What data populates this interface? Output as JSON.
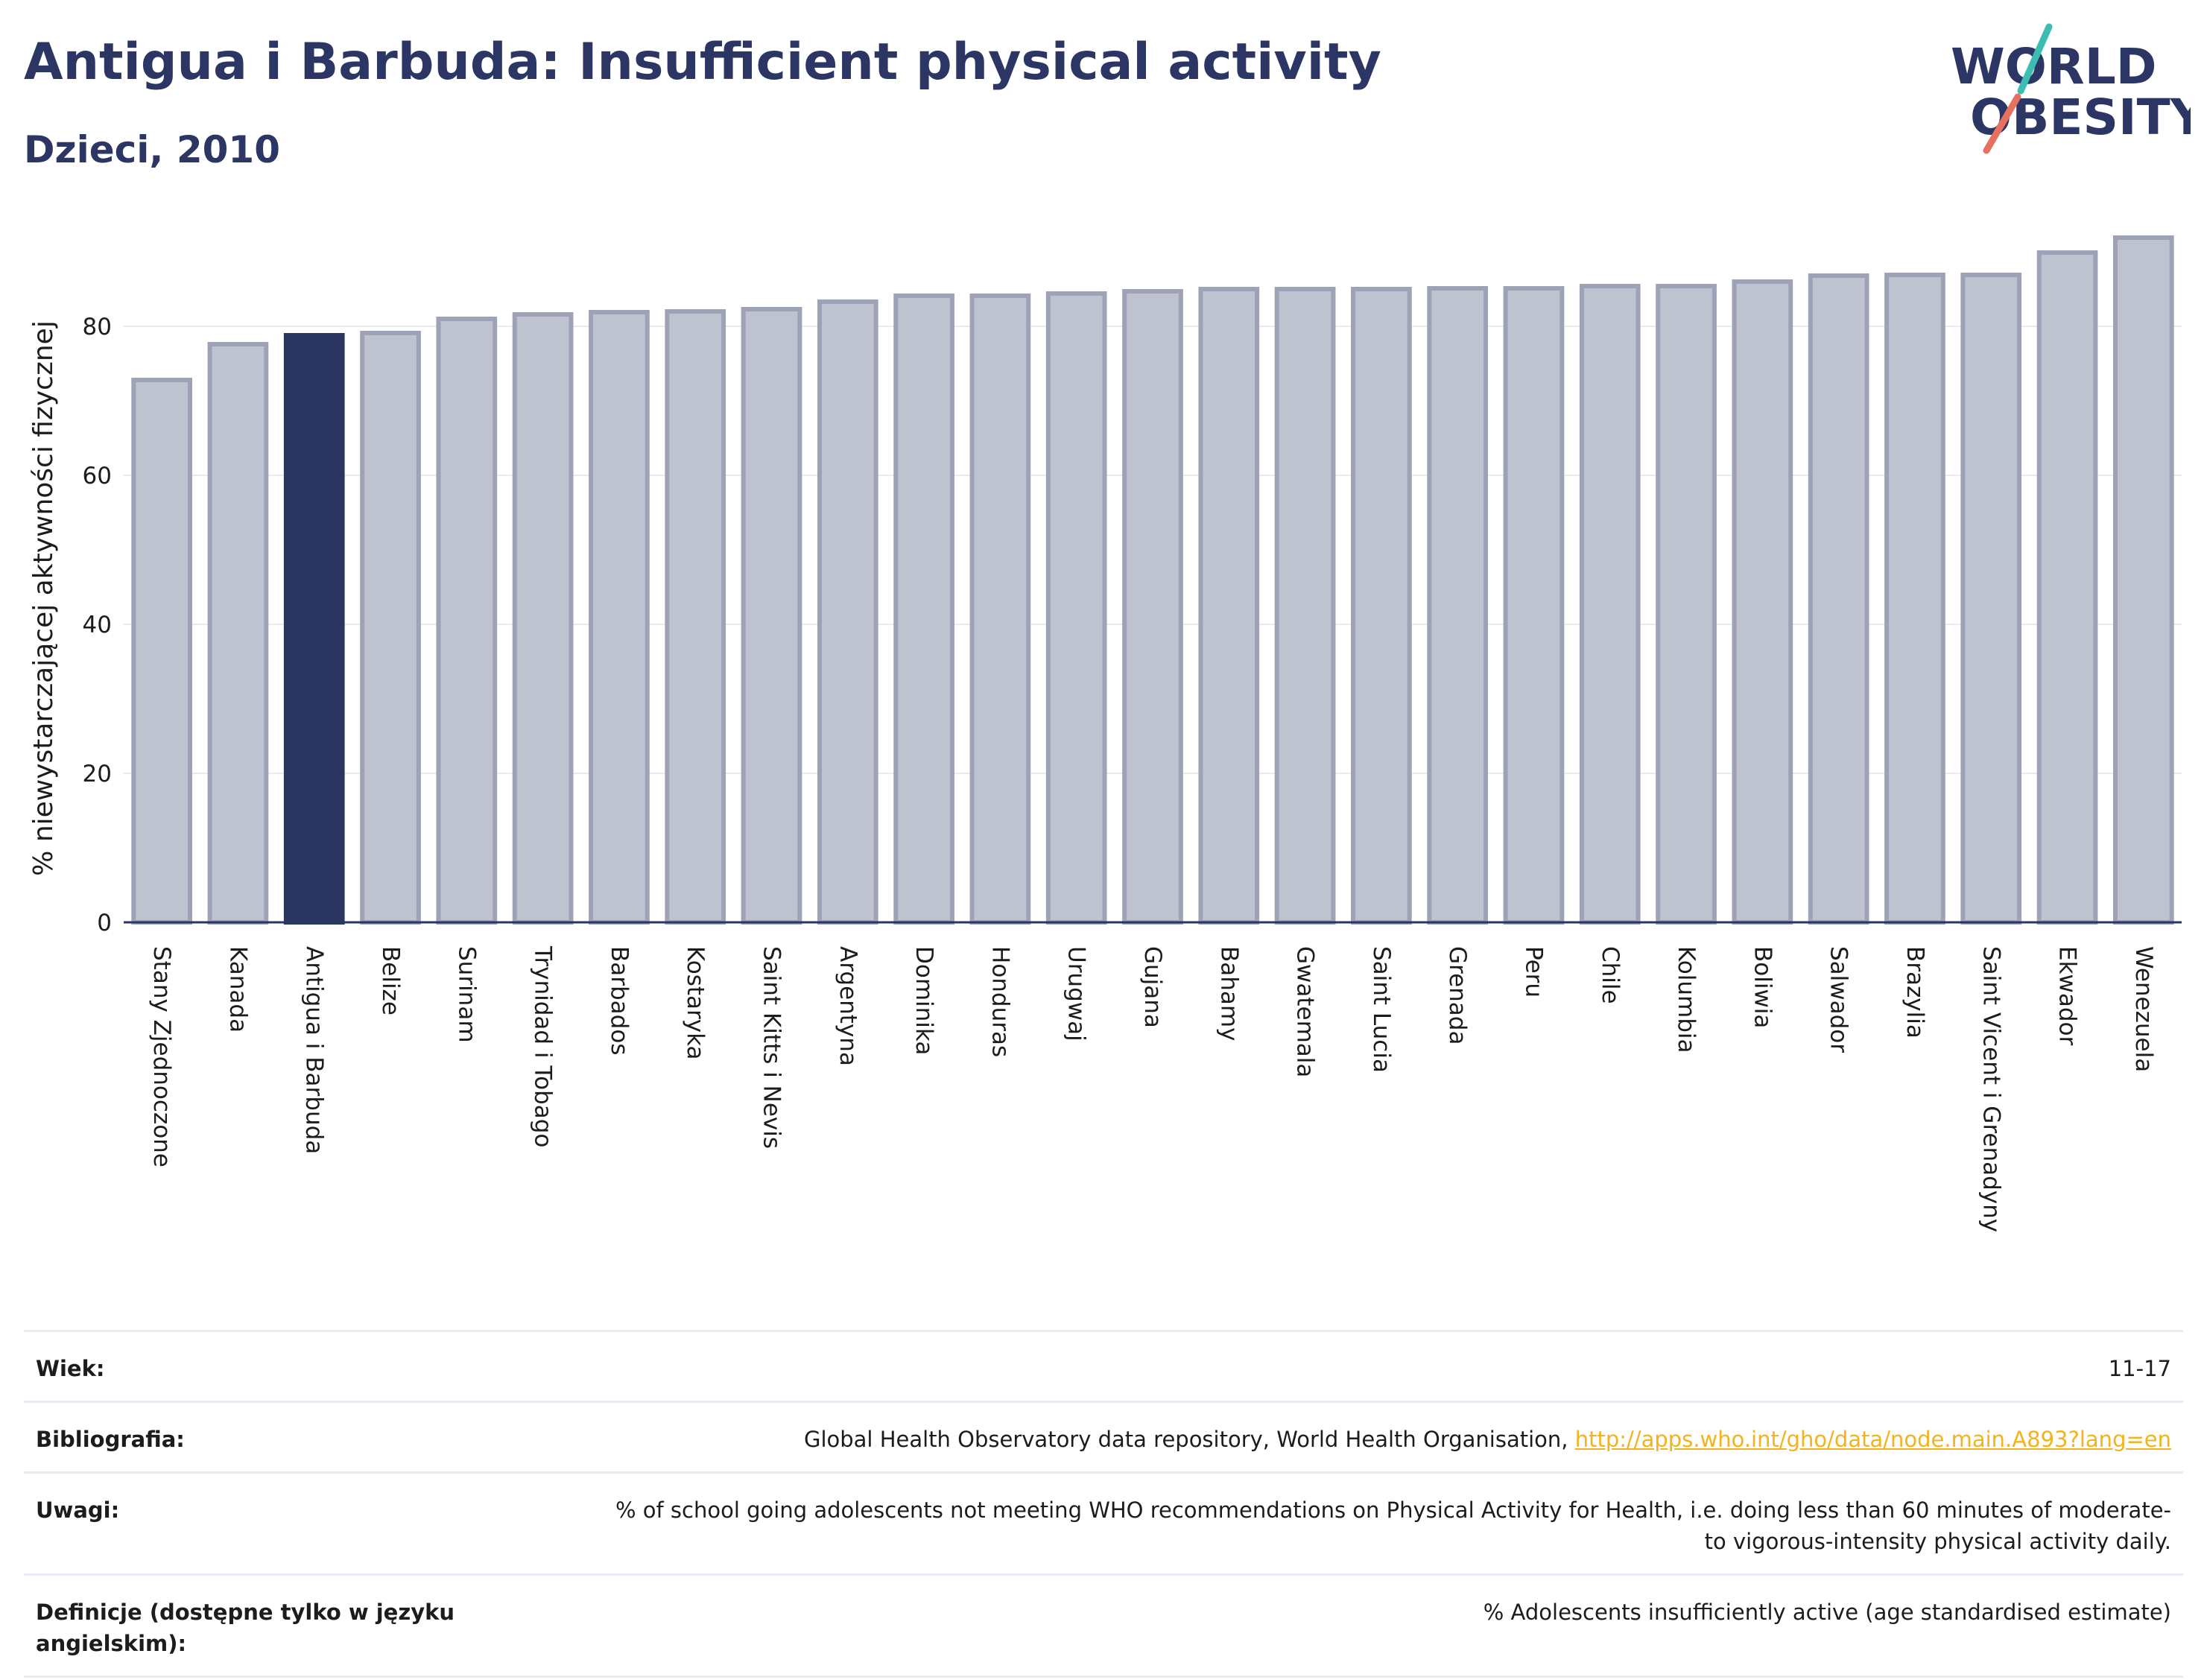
{
  "header": {
    "title": "Antigua i Barbuda: Insufficient physical activity",
    "subtitle": "Dzieci, 2010"
  },
  "logo": {
    "line1": "WORLD",
    "line2": "OBESITY"
  },
  "colors": {
    "highlight_bar": "#2b3660",
    "bar_fill": "#bfc2cf",
    "bar_stroke": "#9da2b6",
    "text_dark": "#2b3664",
    "logo_slash_teal": "#3dbcb4",
    "logo_slash_coral": "#e8705f",
    "link": "#f2b31c"
  },
  "chart_data": {
    "type": "bar",
    "ylabel": "% niewystarczającej aktywności fizycznej",
    "ylim": [
      0,
      92
    ],
    "yticks": [
      0,
      20,
      40,
      60,
      80
    ],
    "grid": true,
    "highlight": "Antigua i Barbuda",
    "categories": [
      "Stany Zjednoczone",
      "Kanada",
      "Antigua i Barbuda",
      "Belize",
      "Surinam",
      "Trynidad i Tobago",
      "Barbados",
      "Kostaryka",
      "Saint Kitts i Nevis",
      "Argentyna",
      "Dominika",
      "Honduras",
      "Urugwaj",
      "Gujana",
      "Bahamy",
      "Gwatemala",
      "Saint Lucia",
      "Grenada",
      "Peru",
      "Chile",
      "Kolumbia",
      "Boliwia",
      "Salwador",
      "Brazylia",
      "Saint Vicent i Grenadyny",
      "Ekwador",
      "Wenezuela"
    ],
    "values": [
      72.8,
      77.6,
      78.8,
      79.1,
      81.0,
      81.6,
      81.9,
      82.0,
      82.3,
      83.3,
      84.1,
      84.1,
      84.4,
      84.7,
      85.0,
      85.0,
      85.0,
      85.1,
      85.1,
      85.4,
      85.4,
      86.0,
      86.8,
      86.9,
      86.9,
      89.9,
      91.9
    ]
  },
  "table": {
    "rows": [
      {
        "label": "Wiek:",
        "value": "11-17"
      },
      {
        "label": "Bibliografia:",
        "value": "Global Health Observatory data repository, World Health Organisation,",
        "link": "http://apps.who.int/gho/data/node.main.A893?lang=en"
      },
      {
        "label": "Uwagi:",
        "value": "% of school going adolescents not meeting WHO recommendations on Physical Activity for Health, i.e. doing less than 60 minutes of moderate- to vigorous-intensity physical activity daily."
      },
      {
        "label": "Definicje (dostępne tylko w języku angielskim):",
        "value": "% Adolescents insufficiently active (age standardised estimate)"
      }
    ]
  }
}
